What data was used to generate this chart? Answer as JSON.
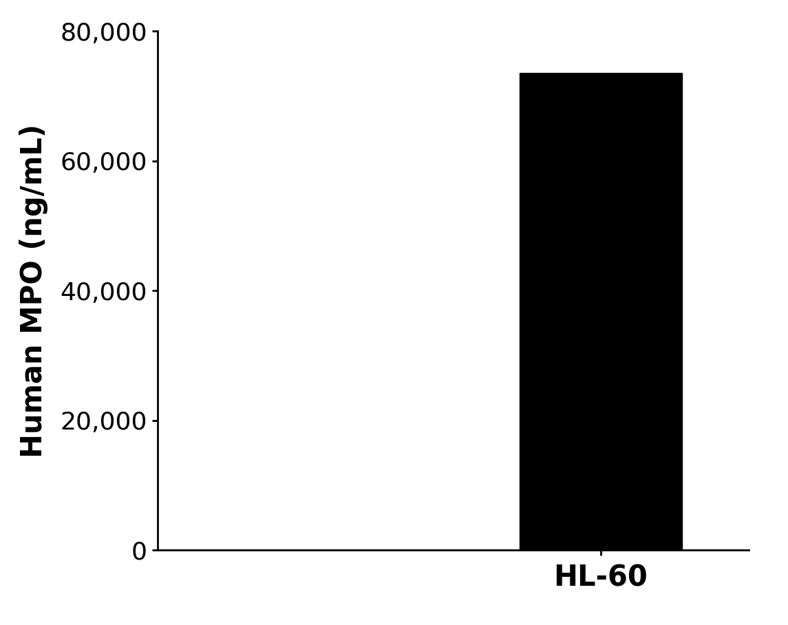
{
  "categories": [
    "HL-60"
  ],
  "values": [
    73583.3
  ],
  "bar_color": "#000000",
  "ylabel": "Human MPO (ng/mL)",
  "ylim": [
    0,
    80000
  ],
  "yticks": [
    0,
    20000,
    40000,
    60000,
    80000
  ],
  "bar_width": 0.55,
  "background_color": "#ffffff",
  "ylabel_fontsize": 30,
  "tick_fontsize": 26,
  "xtick_fontsize": 30,
  "xlim": [
    -0.5,
    1.5
  ]
}
